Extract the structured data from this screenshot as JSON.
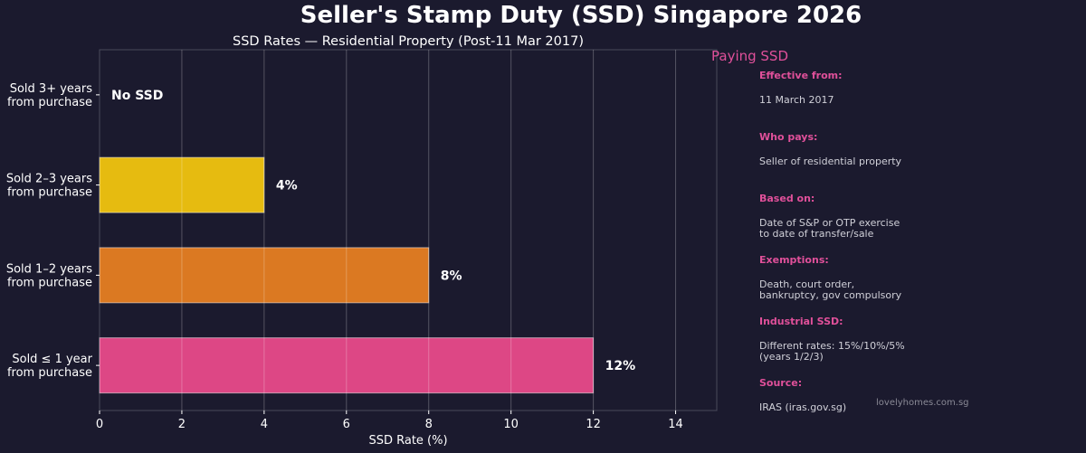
{
  "title": "Seller's Stamp Duty (SSD) Singapore 2026",
  "chart_data": {
    "type": "bar",
    "orientation": "horizontal",
    "title": "SSD Rates — Residential Property (Post-11 Mar 2017)",
    "xlabel": "SSD Rate (%)",
    "ylabel": "",
    "xlim": [
      0,
      15
    ],
    "xticks": [
      0,
      2,
      4,
      6,
      8,
      10,
      12,
      14
    ],
    "grid": true,
    "categories": [
      "Sold 3+ years\nfrom purchase",
      "Sold 2–3 years\nfrom purchase",
      "Sold 1–2 years\nfrom purchase",
      "Sold ≤ 1 year\nfrom purchase"
    ],
    "values": [
      0,
      4,
      8,
      12
    ],
    "data_labels": [
      "No SSD",
      "4%",
      "8%",
      "12%"
    ],
    "colors": [
      "#9b59b6",
      "#f1c40f",
      "#e67e22",
      "#e84a8a"
    ],
    "annotation": "Paying SSD",
    "annotation_color": "#e0509a"
  },
  "info_panel": [
    {
      "label": "Effective from:",
      "value": "11 March 2017"
    },
    {
      "label": "Who pays:",
      "value": "Seller of residential property"
    },
    {
      "label": "Based on:",
      "value": "Date of S&P or OTP exercise\nto date of transfer/sale"
    },
    {
      "label": "Exemptions:",
      "value": "Death, court order,\nbankruptcy, gov compulsory"
    },
    {
      "label": "Industrial SSD:",
      "value": "Different rates: 15%/10%/5%\n(years 1/2/3)"
    },
    {
      "label": "Source:",
      "value": "IRAS (iras.gov.sg)"
    }
  ],
  "watermark": "lovelyhomes.com.sg"
}
